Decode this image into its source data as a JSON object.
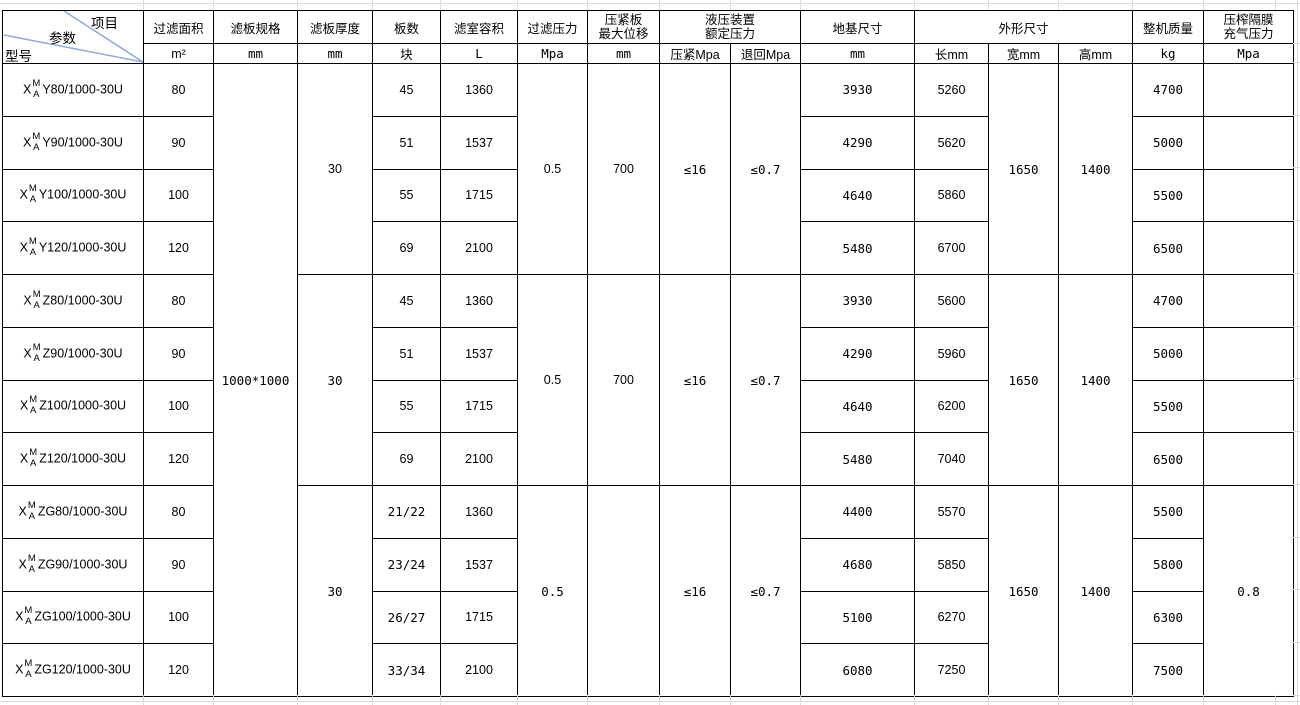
{
  "corner": {
    "item": "项目",
    "param": "参数",
    "model": "型号"
  },
  "header": {
    "area": "过滤面积",
    "spec": "滤板规格",
    "thickness": "滤板厚度",
    "plates": "板数",
    "volume": "滤室容积",
    "pressure": "过滤压力",
    "displacement_l1": "压紧板",
    "displacement_l2": "最大位移",
    "hydraulic_l1": "液压装置",
    "hydraulic_l2": "额定压力",
    "foundation": "地基尺寸",
    "dims": "外形尺寸",
    "weight": "整机质量",
    "membrane_l1": "压榨隔膜",
    "membrane_l2": "充气压力"
  },
  "units": {
    "area": "m²",
    "spec": "mm",
    "thickness": "mm",
    "plates": "块",
    "volume": "L",
    "pressure": "Mpa",
    "displacement": "mm",
    "clamp": "压紧Mpa",
    "return": "退回Mpa",
    "foundation": "mm",
    "length": "长mm",
    "width": "宽mm",
    "height": "高mm",
    "weight": "kg",
    "membrane": "Mpa"
  },
  "rows": [
    [
      {
        "n": "model",
        "model": {
          "pre": "X",
          "sup": "M",
          "sub": "A",
          "rest": "Y80/1000-30U"
        }
      },
      {
        "n": "area",
        "t": "80"
      },
      {
        "n": "spec",
        "t": "1000*1000",
        "rs": 12,
        "f": "m"
      },
      {
        "n": "thickness",
        "t": "30",
        "rs": 4
      },
      {
        "n": "plates",
        "t": "45"
      },
      {
        "n": "volume",
        "t": "1360"
      },
      {
        "n": "pressure",
        "t": "0.5",
        "rs": 4
      },
      {
        "n": "displacement",
        "t": "700",
        "rs": 4
      },
      {
        "n": "clamp",
        "t": "≤16",
        "rs": 4,
        "f": "m"
      },
      {
        "n": "return",
        "t": "≤0.7",
        "rs": 4,
        "f": "m"
      },
      {
        "n": "foundation",
        "t": "3930",
        "f": "m"
      },
      {
        "n": "length",
        "t": "5260"
      },
      {
        "n": "width",
        "t": "1650",
        "rs": 4,
        "f": "m"
      },
      {
        "n": "height",
        "t": "1400",
        "rs": 4,
        "f": "m"
      },
      {
        "n": "weight",
        "t": "4700",
        "f": "m"
      },
      {
        "n": "membrane",
        "t": ""
      }
    ],
    [
      {
        "n": "model",
        "model": {
          "pre": "X",
          "sup": "M",
          "sub": "A",
          "rest": "Y90/1000-30U"
        }
      },
      {
        "n": "area",
        "t": "90"
      },
      {
        "n": "plates",
        "t": "51"
      },
      {
        "n": "volume",
        "t": "1537"
      },
      {
        "n": "foundation",
        "t": "4290",
        "f": "m"
      },
      {
        "n": "length",
        "t": "5620"
      },
      {
        "n": "weight",
        "t": "5000",
        "f": "m"
      },
      {
        "n": "membrane",
        "t": ""
      }
    ],
    [
      {
        "n": "model",
        "model": {
          "pre": "X",
          "sup": "M",
          "sub": "A",
          "rest": "Y100/1000-30U"
        }
      },
      {
        "n": "area",
        "t": "100"
      },
      {
        "n": "plates",
        "t": "55"
      },
      {
        "n": "volume",
        "t": "1715"
      },
      {
        "n": "foundation",
        "t": "4640",
        "f": "m"
      },
      {
        "n": "length",
        "t": "5860"
      },
      {
        "n": "weight",
        "t": "5500",
        "f": "m"
      },
      {
        "n": "membrane",
        "t": ""
      }
    ],
    [
      {
        "n": "model",
        "model": {
          "pre": "X",
          "sup": "M",
          "sub": "A",
          "rest": "Y120/1000-30U"
        }
      },
      {
        "n": "area",
        "t": "120"
      },
      {
        "n": "plates",
        "t": "69"
      },
      {
        "n": "volume",
        "t": "2100"
      },
      {
        "n": "foundation",
        "t": "5480",
        "f": "m"
      },
      {
        "n": "length",
        "t": "6700"
      },
      {
        "n": "weight",
        "t": "6500",
        "f": "m"
      },
      {
        "n": "membrane",
        "t": ""
      }
    ],
    [
      {
        "n": "model",
        "model": {
          "pre": "X",
          "sup": "M",
          "sub": "A",
          "rest": "Z80/1000-30U"
        }
      },
      {
        "n": "area",
        "t": "80"
      },
      {
        "n": "thickness",
        "t": "30",
        "rs": 4,
        "f": "m"
      },
      {
        "n": "plates",
        "t": "45"
      },
      {
        "n": "volume",
        "t": "1360"
      },
      {
        "n": "pressure",
        "t": "0.5",
        "rs": 4
      },
      {
        "n": "displacement",
        "t": "700",
        "rs": 4
      },
      {
        "n": "clamp",
        "t": "≤16",
        "rs": 4,
        "f": "m"
      },
      {
        "n": "return",
        "t": "≤0.7",
        "rs": 4,
        "f": "m"
      },
      {
        "n": "foundation",
        "t": "3930",
        "f": "m"
      },
      {
        "n": "length",
        "t": "5600"
      },
      {
        "n": "width",
        "t": "1650",
        "rs": 4,
        "f": "m"
      },
      {
        "n": "height",
        "t": "1400",
        "rs": 4,
        "f": "m"
      },
      {
        "n": "weight",
        "t": "4700",
        "f": "m"
      },
      {
        "n": "membrane",
        "t": ""
      }
    ],
    [
      {
        "n": "model",
        "model": {
          "pre": "X",
          "sup": "M",
          "sub": "A",
          "rest": "Z90/1000-30U"
        }
      },
      {
        "n": "area",
        "t": "90"
      },
      {
        "n": "plates",
        "t": "51"
      },
      {
        "n": "volume",
        "t": "1537"
      },
      {
        "n": "foundation",
        "t": "4290",
        "f": "m"
      },
      {
        "n": "length",
        "t": "5960"
      },
      {
        "n": "weight",
        "t": "5000",
        "f": "m"
      },
      {
        "n": "membrane",
        "t": ""
      }
    ],
    [
      {
        "n": "model",
        "model": {
          "pre": "X",
          "sup": "M",
          "sub": "A",
          "rest": "Z100/1000-30U"
        }
      },
      {
        "n": "area",
        "t": "100"
      },
      {
        "n": "plates",
        "t": "55"
      },
      {
        "n": "volume",
        "t": "1715"
      },
      {
        "n": "foundation",
        "t": "4640",
        "f": "m"
      },
      {
        "n": "length",
        "t": "6200"
      },
      {
        "n": "weight",
        "t": "5500",
        "f": "m"
      },
      {
        "n": "membrane",
        "t": ""
      }
    ],
    [
      {
        "n": "model",
        "model": {
          "pre": "X",
          "sup": "M",
          "sub": "A",
          "rest": "Z120/1000-30U"
        }
      },
      {
        "n": "area",
        "t": "120"
      },
      {
        "n": "plates",
        "t": "69"
      },
      {
        "n": "volume",
        "t": "2100"
      },
      {
        "n": "foundation",
        "t": "5480",
        "f": "m"
      },
      {
        "n": "length",
        "t": "7040"
      },
      {
        "n": "weight",
        "t": "6500",
        "f": "m"
      },
      {
        "n": "membrane",
        "t": ""
      }
    ],
    [
      {
        "n": "model",
        "model": {
          "pre": "X",
          "sup": "M",
          "sub": "A",
          "rest": "ZG80/1000-30U"
        }
      },
      {
        "n": "area",
        "t": "80"
      },
      {
        "n": "thickness",
        "t": "30",
        "rs": 4,
        "f": "m"
      },
      {
        "n": "plates",
        "t": "21/22",
        "f": "m"
      },
      {
        "n": "volume",
        "t": "1360"
      },
      {
        "n": "pressure",
        "t": "0.5",
        "rs": 4,
        "f": "m"
      },
      {
        "n": "displacement",
        "t": "",
        "rs": 4
      },
      {
        "n": "clamp",
        "t": "≤16",
        "rs": 4,
        "f": "m"
      },
      {
        "n": "return",
        "t": "≤0.7",
        "rs": 4,
        "f": "m"
      },
      {
        "n": "foundation",
        "t": "4400",
        "f": "m"
      },
      {
        "n": "length",
        "t": "5570"
      },
      {
        "n": "width",
        "t": "1650",
        "rs": 4,
        "f": "m"
      },
      {
        "n": "height",
        "t": "1400",
        "rs": 4,
        "f": "m"
      },
      {
        "n": "weight",
        "t": "5500",
        "f": "m"
      },
      {
        "n": "membrane",
        "t": "0.8",
        "rs": 4,
        "f": "m"
      }
    ],
    [
      {
        "n": "model",
        "model": {
          "pre": "X",
          "sup": "M",
          "sub": "A",
          "rest": "ZG90/1000-30U"
        }
      },
      {
        "n": "area",
        "t": "90"
      },
      {
        "n": "plates",
        "t": "23/24",
        "f": "m"
      },
      {
        "n": "volume",
        "t": "1537"
      },
      {
        "n": "foundation",
        "t": "4680",
        "f": "m"
      },
      {
        "n": "length",
        "t": "5850"
      },
      {
        "n": "weight",
        "t": "5800",
        "f": "m"
      }
    ],
    [
      {
        "n": "model",
        "model": {
          "pre": "X",
          "sup": "M",
          "sub": "A",
          "rest": "ZG100/1000-30U"
        }
      },
      {
        "n": "area",
        "t": "100"
      },
      {
        "n": "plates",
        "t": "26/27",
        "f": "m"
      },
      {
        "n": "volume",
        "t": "1715"
      },
      {
        "n": "foundation",
        "t": "5100",
        "f": "m"
      },
      {
        "n": "length",
        "t": "6270"
      },
      {
        "n": "weight",
        "t": "6300",
        "f": "m"
      }
    ],
    [
      {
        "n": "model",
        "model": {
          "pre": "X",
          "sup": "M",
          "sub": "A",
          "rest": "ZG120/1000-30U"
        }
      },
      {
        "n": "area",
        "t": "120"
      },
      {
        "n": "plates",
        "t": "33/34",
        "f": "m"
      },
      {
        "n": "volume",
        "t": "2100"
      },
      {
        "n": "foundation",
        "t": "6080",
        "f": "m"
      },
      {
        "n": "length",
        "t": "7250"
      },
      {
        "n": "weight",
        "t": "7500",
        "f": "m"
      }
    ]
  ],
  "colors": {
    "border": "#000000",
    "diagonal": "#8faadc",
    "gridline": "#dcdcdc"
  }
}
